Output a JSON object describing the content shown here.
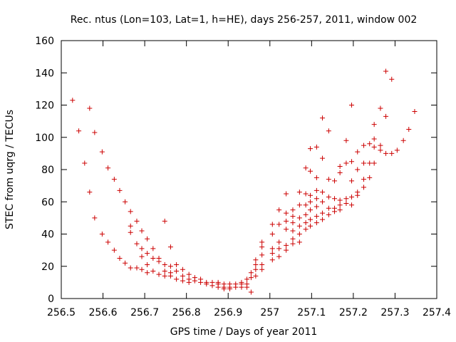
{
  "chart_data": {
    "type": "scatter",
    "title": "Rec. ntus (Lon=103, Lat=1, h=HE), days 256-257, 2011, window 002",
    "xlabel": "GPS time / Days of year 2011",
    "ylabel": "STEC from uqrg / TECUs",
    "xlim": [
      256.5,
      257.4
    ],
    "ylim": [
      0,
      160
    ],
    "xticks": [
      "256.5",
      "256.6",
      "256.7",
      "256.8",
      "256.9",
      "257",
      "257.1",
      "257.2",
      "257.3",
      "257.4"
    ],
    "yticks": [
      "0",
      "20",
      "40",
      "60",
      "80",
      "100",
      "120",
      "140",
      "160"
    ],
    "marker": "+",
    "color": "#cc0000",
    "grid": false,
    "points": [
      [
        256.527,
        123
      ],
      [
        256.542,
        104
      ],
      [
        256.556,
        84
      ],
      [
        256.568,
        118
      ],
      [
        256.568,
        66
      ],
      [
        256.58,
        103
      ],
      [
        256.58,
        50
      ],
      [
        256.598,
        91
      ],
      [
        256.598,
        40
      ],
      [
        256.612,
        81
      ],
      [
        256.612,
        35
      ],
      [
        256.627,
        74
      ],
      [
        256.627,
        30
      ],
      [
        256.64,
        67
      ],
      [
        256.64,
        25
      ],
      [
        256.653,
        60
      ],
      [
        256.653,
        22
      ],
      [
        256.666,
        54
      ],
      [
        256.666,
        45
      ],
      [
        256.666,
        41
      ],
      [
        256.666,
        19
      ],
      [
        256.681,
        48
      ],
      [
        256.681,
        34
      ],
      [
        256.681,
        19
      ],
      [
        256.693,
        42
      ],
      [
        256.693,
        31
      ],
      [
        256.693,
        26
      ],
      [
        256.693,
        18
      ],
      [
        256.706,
        37
      ],
      [
        256.706,
        28
      ],
      [
        256.706,
        21
      ],
      [
        256.706,
        16
      ],
      [
        256.72,
        31
      ],
      [
        256.72,
        25
      ],
      [
        256.72,
        17
      ],
      [
        256.734,
        25
      ],
      [
        256.734,
        23
      ],
      [
        256.734,
        15
      ],
      [
        256.748,
        48
      ],
      [
        256.748,
        21
      ],
      [
        256.748,
        17
      ],
      [
        256.748,
        14
      ],
      [
        256.762,
        32
      ],
      [
        256.762,
        20
      ],
      [
        256.762,
        16
      ],
      [
        256.762,
        14
      ],
      [
        256.776,
        21
      ],
      [
        256.776,
        17
      ],
      [
        256.776,
        12
      ],
      [
        256.791,
        18
      ],
      [
        256.791,
        14
      ],
      [
        256.791,
        11
      ],
      [
        256.806,
        15
      ],
      [
        256.806,
        12
      ],
      [
        256.806,
        10
      ],
      [
        256.82,
        13
      ],
      [
        256.82,
        11
      ],
      [
        256.834,
        12
      ],
      [
        256.834,
        10
      ],
      [
        256.848,
        10
      ],
      [
        256.848,
        9
      ],
      [
        256.862,
        10
      ],
      [
        256.862,
        8
      ],
      [
        256.876,
        10
      ],
      [
        256.876,
        9
      ],
      [
        256.876,
        7
      ],
      [
        256.89,
        9
      ],
      [
        256.89,
        7
      ],
      [
        256.89,
        6
      ],
      [
        256.904,
        9
      ],
      [
        256.904,
        7
      ],
      [
        256.904,
        6
      ],
      [
        256.918,
        9
      ],
      [
        256.918,
        7
      ],
      [
        256.932,
        10
      ],
      [
        256.932,
        9
      ],
      [
        256.932,
        7
      ],
      [
        256.945,
        12
      ],
      [
        256.945,
        9
      ],
      [
        256.945,
        7
      ],
      [
        256.955,
        16
      ],
      [
        256.955,
        13
      ],
      [
        256.955,
        4
      ],
      [
        256.966,
        24
      ],
      [
        256.966,
        21
      ],
      [
        256.966,
        18
      ],
      [
        256.966,
        14
      ],
      [
        256.981,
        35
      ],
      [
        256.981,
        32
      ],
      [
        256.981,
        27
      ],
      [
        256.981,
        21
      ],
      [
        256.981,
        18
      ],
      [
        257.006,
        46
      ],
      [
        257.006,
        40
      ],
      [
        257.006,
        31
      ],
      [
        257.006,
        28
      ],
      [
        257.006,
        24
      ],
      [
        257.022,
        55
      ],
      [
        257.022,
        46
      ],
      [
        257.022,
        35
      ],
      [
        257.022,
        31
      ],
      [
        257.022,
        26
      ],
      [
        257.039,
        65
      ],
      [
        257.039,
        53
      ],
      [
        257.039,
        48
      ],
      [
        257.039,
        43
      ],
      [
        257.039,
        33
      ],
      [
        257.039,
        30
      ],
      [
        257.055,
        55
      ],
      [
        257.055,
        51
      ],
      [
        257.055,
        47
      ],
      [
        257.055,
        42
      ],
      [
        257.055,
        37
      ],
      [
        257.055,
        34
      ],
      [
        257.071,
        66
      ],
      [
        257.071,
        58
      ],
      [
        257.071,
        50
      ],
      [
        257.071,
        45
      ],
      [
        257.071,
        40
      ],
      [
        257.071,
        35
      ],
      [
        257.086,
        81
      ],
      [
        257.086,
        65
      ],
      [
        257.086,
        58
      ],
      [
        257.086,
        52
      ],
      [
        257.086,
        47
      ],
      [
        257.086,
        43
      ],
      [
        257.097,
        93
      ],
      [
        257.097,
        79
      ],
      [
        257.097,
        64
      ],
      [
        257.097,
        60
      ],
      [
        257.097,
        55
      ],
      [
        257.097,
        49
      ],
      [
        257.097,
        45
      ],
      [
        257.112,
        94
      ],
      [
        257.112,
        75
      ],
      [
        257.112,
        67
      ],
      [
        257.112,
        62
      ],
      [
        257.112,
        57
      ],
      [
        257.112,
        51
      ],
      [
        257.112,
        47
      ],
      [
        257.126,
        112
      ],
      [
        257.126,
        87
      ],
      [
        257.126,
        66
      ],
      [
        257.126,
        60
      ],
      [
        257.126,
        53
      ],
      [
        257.126,
        49
      ],
      [
        257.141,
        104
      ],
      [
        257.141,
        74
      ],
      [
        257.141,
        63
      ],
      [
        257.141,
        56
      ],
      [
        257.141,
        52
      ],
      [
        257.155,
        73
      ],
      [
        257.155,
        62
      ],
      [
        257.155,
        56
      ],
      [
        257.155,
        54
      ],
      [
        257.168,
        82
      ],
      [
        257.168,
        78
      ],
      [
        257.168,
        61
      ],
      [
        257.168,
        58
      ],
      [
        257.168,
        55
      ],
      [
        257.183,
        98
      ],
      [
        257.183,
        84
      ],
      [
        257.183,
        62
      ],
      [
        257.183,
        59
      ],
      [
        257.196,
        120
      ],
      [
        257.196,
        85
      ],
      [
        257.196,
        73
      ],
      [
        257.196,
        63
      ],
      [
        257.196,
        58
      ],
      [
        257.21,
        91
      ],
      [
        257.21,
        80
      ],
      [
        257.21,
        66
      ],
      [
        257.21,
        64
      ],
      [
        257.225,
        95
      ],
      [
        257.225,
        84
      ],
      [
        257.225,
        74
      ],
      [
        257.225,
        69
      ],
      [
        257.239,
        96
      ],
      [
        257.239,
        84
      ],
      [
        257.239,
        75
      ],
      [
        257.25,
        108
      ],
      [
        257.25,
        99
      ],
      [
        257.25,
        94
      ],
      [
        257.25,
        84
      ],
      [
        257.265,
        118
      ],
      [
        257.265,
        95
      ],
      [
        257.265,
        92
      ],
      [
        257.278,
        141
      ],
      [
        257.278,
        113
      ],
      [
        257.278,
        90
      ],
      [
        257.292,
        136
      ],
      [
        257.292,
        90
      ],
      [
        257.305,
        92
      ],
      [
        257.32,
        98
      ],
      [
        257.333,
        105
      ],
      [
        257.347,
        116
      ]
    ]
  }
}
